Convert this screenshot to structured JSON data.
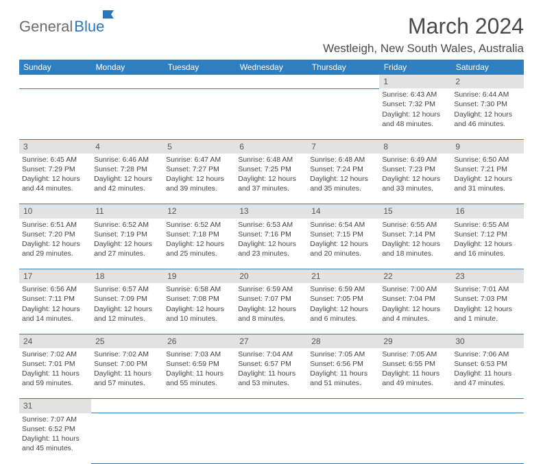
{
  "logo": {
    "part1": "General",
    "part2": "Blue"
  },
  "title": "March 2024",
  "location": "Westleigh, New South Wales, Australia",
  "colors": {
    "header_bg": "#2f7fc0",
    "header_text": "#ffffff",
    "daynum_bg": "#e2e2e2",
    "cell_border": "#2f7fc0",
    "body_text": "#444444",
    "title_text": "#4a4a4a",
    "logo_gray": "#6b6b6b",
    "logo_blue": "#2a77b8"
  },
  "weekdays": [
    "Sunday",
    "Monday",
    "Tuesday",
    "Wednesday",
    "Thursday",
    "Friday",
    "Saturday"
  ],
  "weeks": [
    [
      null,
      null,
      null,
      null,
      null,
      {
        "day": "1",
        "sunrise": "Sunrise: 6:43 AM",
        "sunset": "Sunset: 7:32 PM",
        "daylight1": "Daylight: 12 hours",
        "daylight2": "and 48 minutes."
      },
      {
        "day": "2",
        "sunrise": "Sunrise: 6:44 AM",
        "sunset": "Sunset: 7:30 PM",
        "daylight1": "Daylight: 12 hours",
        "daylight2": "and 46 minutes."
      }
    ],
    [
      {
        "day": "3",
        "sunrise": "Sunrise: 6:45 AM",
        "sunset": "Sunset: 7:29 PM",
        "daylight1": "Daylight: 12 hours",
        "daylight2": "and 44 minutes."
      },
      {
        "day": "4",
        "sunrise": "Sunrise: 6:46 AM",
        "sunset": "Sunset: 7:28 PM",
        "daylight1": "Daylight: 12 hours",
        "daylight2": "and 42 minutes."
      },
      {
        "day": "5",
        "sunrise": "Sunrise: 6:47 AM",
        "sunset": "Sunset: 7:27 PM",
        "daylight1": "Daylight: 12 hours",
        "daylight2": "and 39 minutes."
      },
      {
        "day": "6",
        "sunrise": "Sunrise: 6:48 AM",
        "sunset": "Sunset: 7:25 PM",
        "daylight1": "Daylight: 12 hours",
        "daylight2": "and 37 minutes."
      },
      {
        "day": "7",
        "sunrise": "Sunrise: 6:48 AM",
        "sunset": "Sunset: 7:24 PM",
        "daylight1": "Daylight: 12 hours",
        "daylight2": "and 35 minutes."
      },
      {
        "day": "8",
        "sunrise": "Sunrise: 6:49 AM",
        "sunset": "Sunset: 7:23 PM",
        "daylight1": "Daylight: 12 hours",
        "daylight2": "and 33 minutes."
      },
      {
        "day": "9",
        "sunrise": "Sunrise: 6:50 AM",
        "sunset": "Sunset: 7:21 PM",
        "daylight1": "Daylight: 12 hours",
        "daylight2": "and 31 minutes."
      }
    ],
    [
      {
        "day": "10",
        "sunrise": "Sunrise: 6:51 AM",
        "sunset": "Sunset: 7:20 PM",
        "daylight1": "Daylight: 12 hours",
        "daylight2": "and 29 minutes."
      },
      {
        "day": "11",
        "sunrise": "Sunrise: 6:52 AM",
        "sunset": "Sunset: 7:19 PM",
        "daylight1": "Daylight: 12 hours",
        "daylight2": "and 27 minutes."
      },
      {
        "day": "12",
        "sunrise": "Sunrise: 6:52 AM",
        "sunset": "Sunset: 7:18 PM",
        "daylight1": "Daylight: 12 hours",
        "daylight2": "and 25 minutes."
      },
      {
        "day": "13",
        "sunrise": "Sunrise: 6:53 AM",
        "sunset": "Sunset: 7:16 PM",
        "daylight1": "Daylight: 12 hours",
        "daylight2": "and 23 minutes."
      },
      {
        "day": "14",
        "sunrise": "Sunrise: 6:54 AM",
        "sunset": "Sunset: 7:15 PM",
        "daylight1": "Daylight: 12 hours",
        "daylight2": "and 20 minutes."
      },
      {
        "day": "15",
        "sunrise": "Sunrise: 6:55 AM",
        "sunset": "Sunset: 7:14 PM",
        "daylight1": "Daylight: 12 hours",
        "daylight2": "and 18 minutes."
      },
      {
        "day": "16",
        "sunrise": "Sunrise: 6:55 AM",
        "sunset": "Sunset: 7:12 PM",
        "daylight1": "Daylight: 12 hours",
        "daylight2": "and 16 minutes."
      }
    ],
    [
      {
        "day": "17",
        "sunrise": "Sunrise: 6:56 AM",
        "sunset": "Sunset: 7:11 PM",
        "daylight1": "Daylight: 12 hours",
        "daylight2": "and 14 minutes."
      },
      {
        "day": "18",
        "sunrise": "Sunrise: 6:57 AM",
        "sunset": "Sunset: 7:09 PM",
        "daylight1": "Daylight: 12 hours",
        "daylight2": "and 12 minutes."
      },
      {
        "day": "19",
        "sunrise": "Sunrise: 6:58 AM",
        "sunset": "Sunset: 7:08 PM",
        "daylight1": "Daylight: 12 hours",
        "daylight2": "and 10 minutes."
      },
      {
        "day": "20",
        "sunrise": "Sunrise: 6:59 AM",
        "sunset": "Sunset: 7:07 PM",
        "daylight1": "Daylight: 12 hours",
        "daylight2": "and 8 minutes."
      },
      {
        "day": "21",
        "sunrise": "Sunrise: 6:59 AM",
        "sunset": "Sunset: 7:05 PM",
        "daylight1": "Daylight: 12 hours",
        "daylight2": "and 6 minutes."
      },
      {
        "day": "22",
        "sunrise": "Sunrise: 7:00 AM",
        "sunset": "Sunset: 7:04 PM",
        "daylight1": "Daylight: 12 hours",
        "daylight2": "and 4 minutes."
      },
      {
        "day": "23",
        "sunrise": "Sunrise: 7:01 AM",
        "sunset": "Sunset: 7:03 PM",
        "daylight1": "Daylight: 12 hours",
        "daylight2": "and 1 minute."
      }
    ],
    [
      {
        "day": "24",
        "sunrise": "Sunrise: 7:02 AM",
        "sunset": "Sunset: 7:01 PM",
        "daylight1": "Daylight: 11 hours",
        "daylight2": "and 59 minutes."
      },
      {
        "day": "25",
        "sunrise": "Sunrise: 7:02 AM",
        "sunset": "Sunset: 7:00 PM",
        "daylight1": "Daylight: 11 hours",
        "daylight2": "and 57 minutes."
      },
      {
        "day": "26",
        "sunrise": "Sunrise: 7:03 AM",
        "sunset": "Sunset: 6:59 PM",
        "daylight1": "Daylight: 11 hours",
        "daylight2": "and 55 minutes."
      },
      {
        "day": "27",
        "sunrise": "Sunrise: 7:04 AM",
        "sunset": "Sunset: 6:57 PM",
        "daylight1": "Daylight: 11 hours",
        "daylight2": "and 53 minutes."
      },
      {
        "day": "28",
        "sunrise": "Sunrise: 7:05 AM",
        "sunset": "Sunset: 6:56 PM",
        "daylight1": "Daylight: 11 hours",
        "daylight2": "and 51 minutes."
      },
      {
        "day": "29",
        "sunrise": "Sunrise: 7:05 AM",
        "sunset": "Sunset: 6:55 PM",
        "daylight1": "Daylight: 11 hours",
        "daylight2": "and 49 minutes."
      },
      {
        "day": "30",
        "sunrise": "Sunrise: 7:06 AM",
        "sunset": "Sunset: 6:53 PM",
        "daylight1": "Daylight: 11 hours",
        "daylight2": "and 47 minutes."
      }
    ],
    [
      {
        "day": "31",
        "sunrise": "Sunrise: 7:07 AM",
        "sunset": "Sunset: 6:52 PM",
        "daylight1": "Daylight: 11 hours",
        "daylight2": "and 45 minutes."
      },
      null,
      null,
      null,
      null,
      null,
      null
    ]
  ]
}
